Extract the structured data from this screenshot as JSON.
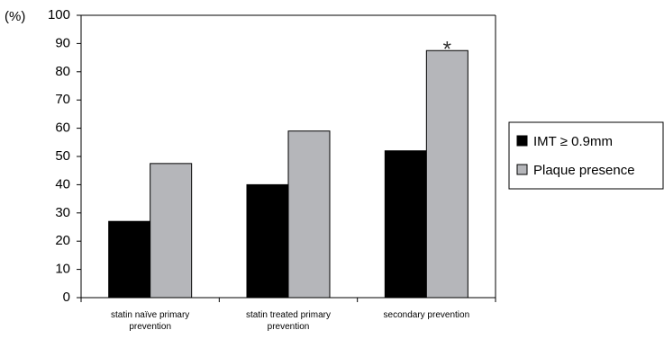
{
  "chart_data": {
    "type": "bar",
    "categories": [
      [
        "statin naïve primary",
        "prevention"
      ],
      [
        "statin treated primary",
        "prevention"
      ],
      [
        "secondary prevention"
      ]
    ],
    "series": [
      {
        "name": "IMT ≥ 0.9mm",
        "values": [
          27,
          40,
          52
        ],
        "color": "#000000"
      },
      {
        "name": "Plaque presence",
        "values": [
          47.5,
          59,
          87.5
        ],
        "color": "#b5b6ba"
      }
    ],
    "ylabel": "(%)",
    "ylim": [
      0,
      100
    ],
    "yticks": [
      0,
      10,
      20,
      30,
      40,
      50,
      60,
      70,
      80,
      90,
      100
    ],
    "annotations": [
      {
        "text": "*",
        "category_index": 2,
        "series_index": 1
      }
    ],
    "legend": "right",
    "grid": false
  }
}
